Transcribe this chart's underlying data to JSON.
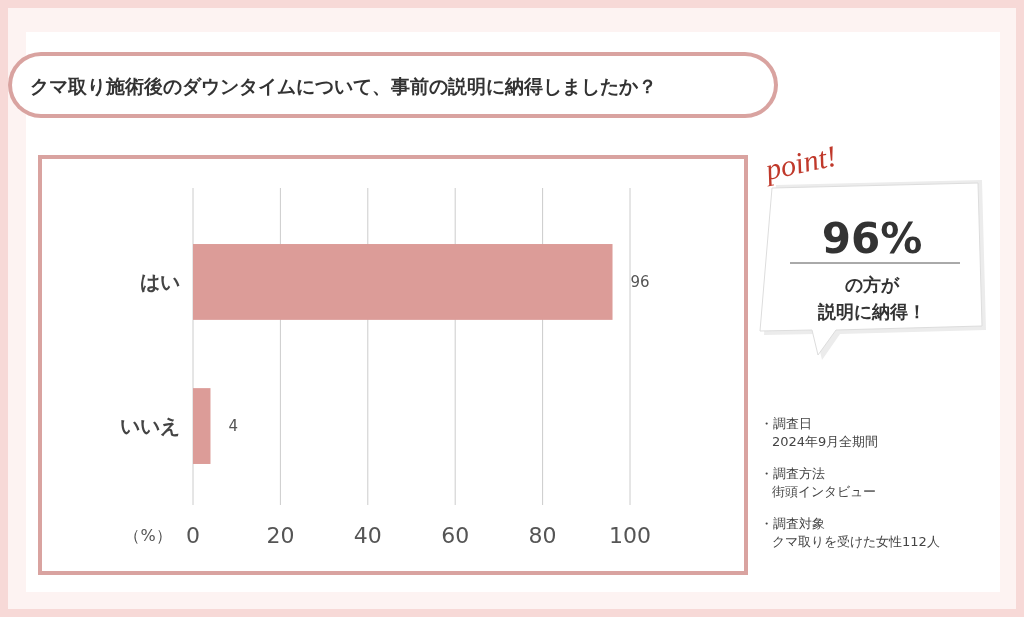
{
  "chart_data": {
    "type": "bar",
    "orientation": "horizontal",
    "title": "クマ取り施術後のダウンタイムについて、事前の説明に納得しましたか？",
    "categories": [
      "はい",
      "いいえ"
    ],
    "values": [
      96,
      4
    ],
    "color": "#dc9c98",
    "data_labels": true,
    "xlim": [
      0,
      100
    ],
    "xticks": [
      0,
      20,
      40,
      60,
      80,
      100
    ],
    "xlabel": "（%）",
    "grid": "x",
    "annotations": [
      "point!",
      "96%",
      "の方が",
      "説明に納得！",
      "・調査日",
      "2024年9月全期間",
      "・調査方法",
      "街頭インタビュー",
      "・調査対象",
      "クマ取りを受けた女性112人"
    ]
  }
}
